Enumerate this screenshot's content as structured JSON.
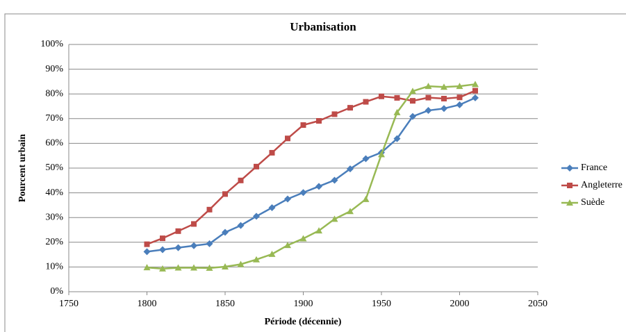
{
  "chart_data": {
    "type": "line",
    "title": "Urbanisation",
    "x_label": "Période (décennie)",
    "y_label": "Pourcent urbain",
    "x": [
      1800,
      1810,
      1820,
      1830,
      1840,
      1850,
      1860,
      1870,
      1880,
      1890,
      1900,
      1910,
      1920,
      1930,
      1940,
      1950,
      1960,
      1970,
      1980,
      1990,
      2000,
      2010
    ],
    "series": [
      {
        "name": "France",
        "color": "#4a7ebb",
        "marker": "diamond",
        "values": [
          16.2,
          17,
          17.8,
          18.6,
          19.4,
          24,
          26.8,
          30.5,
          34,
          37.5,
          40.1,
          42.6,
          45.1,
          49.7,
          53.8,
          56.3,
          61.9,
          70.9,
          73.3,
          74.1,
          75.6,
          78.4
        ]
      },
      {
        "name": "Angleterre",
        "color": "#be4b48",
        "marker": "square",
        "values": [
          19.2,
          21.6,
          24.5,
          27.4,
          33.2,
          39.5,
          45,
          50.6,
          56.2,
          62,
          67.4,
          69.1,
          71.8,
          74.4,
          76.8,
          79,
          78.4,
          77.2,
          78.5,
          78.1,
          78.6,
          81.3
        ]
      },
      {
        "name": "Suède",
        "color": "#98b954",
        "marker": "triangle",
        "values": [
          9.8,
          9.3,
          9.7,
          9.7,
          9.6,
          10.1,
          11.1,
          13,
          15.2,
          18.8,
          21.5,
          24.7,
          29.4,
          32.5,
          37.4,
          55.5,
          72.5,
          81.1,
          83.1,
          82.8,
          83.1,
          83.9
        ]
      }
    ],
    "xlim": [
      1750,
      2050
    ],
    "xticks": [
      1750,
      1800,
      1850,
      1900,
      1950,
      2000,
      2050
    ],
    "ylim": [
      0,
      100
    ],
    "yticks": [
      {
        "value": 0,
        "label": "0%"
      },
      {
        "value": 10,
        "label": "10%"
      },
      {
        "value": 20,
        "label": "20%"
      },
      {
        "value": 30,
        "label": "30%"
      },
      {
        "value": 40,
        "label": "40%"
      },
      {
        "value": 50,
        "label": "50%"
      },
      {
        "value": 60,
        "label": "60%"
      },
      {
        "value": 70,
        "label": "70%"
      },
      {
        "value": 80,
        "label": "80%"
      },
      {
        "value": 90,
        "label": "90%"
      },
      {
        "value": 100,
        "label": "100%"
      }
    ],
    "grid": true,
    "legend": "right"
  }
}
